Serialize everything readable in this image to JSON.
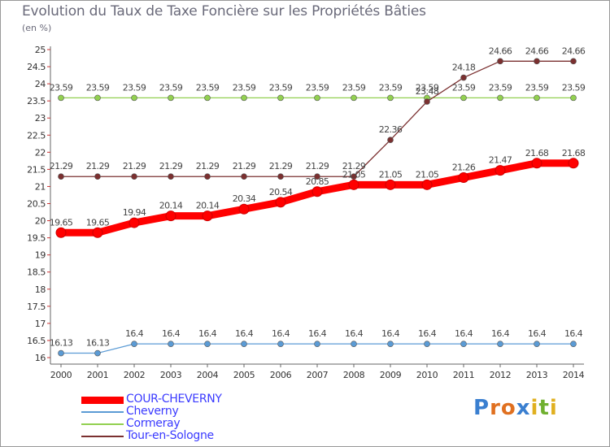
{
  "chart_data": {
    "type": "line",
    "title": "Evolution du Taux de Taxe Foncière sur les Propriétés Bâties",
    "ylabel": "(en %)",
    "categories": [
      "2000",
      "2001",
      "2002",
      "2003",
      "2004",
      "2005",
      "2006",
      "2007",
      "2008",
      "2009",
      "2010",
      "2011",
      "2012",
      "2013",
      "2014"
    ],
    "ylim": [
      16,
      25
    ],
    "yticks": [
      "16",
      "16.5",
      "17",
      "17.5",
      "18",
      "18.5",
      "19",
      "19.5",
      "20",
      "20.5",
      "21",
      "21.5",
      "22",
      "22.5",
      "23",
      "23.5",
      "24",
      "24.5",
      "25"
    ],
    "series": [
      {
        "name": "COUR-CHEVERNY",
        "color": "#ff0000",
        "values": [
          19.65,
          19.65,
          19.94,
          20.14,
          20.14,
          20.34,
          20.54,
          20.85,
          21.05,
          21.05,
          21.05,
          21.26,
          21.47,
          21.68,
          21.68
        ],
        "labels": [
          "19.65",
          "19.65",
          "19.94",
          "20.14",
          "20.14",
          "20.34",
          "20.54",
          "20.85",
          "21.05",
          "21.05",
          "21.05",
          "21.26",
          "21.47",
          "21.68",
          "21.68"
        ]
      },
      {
        "name": "Cheverny",
        "color": "#5b9bd5",
        "values": [
          16.13,
          16.13,
          16.4,
          16.4,
          16.4,
          16.4,
          16.4,
          16.4,
          16.4,
          16.4,
          16.4,
          16.4,
          16.4,
          16.4,
          16.4
        ],
        "labels": [
          "16.13",
          "16.13",
          "16.4",
          "16.4",
          "16.4",
          "16.4",
          "16.4",
          "16.4",
          "16.4",
          "16.4",
          "16.4",
          "16.4",
          "16.4",
          "16.4",
          "16.4"
        ]
      },
      {
        "name": "Cormeray",
        "color": "#92d050",
        "values": [
          23.59,
          23.59,
          23.59,
          23.59,
          23.59,
          23.59,
          23.59,
          23.59,
          23.59,
          23.59,
          23.59,
          23.59,
          23.59,
          23.59,
          23.59
        ],
        "labels": [
          "23.59",
          "23.59",
          "23.59",
          "23.59",
          "23.59",
          "23.59",
          "23.59",
          "23.59",
          "23.59",
          "23.59",
          "23.59",
          "23.59",
          "23.59",
          "23.59",
          "23.59"
        ]
      },
      {
        "name": "Tour-en-Sologne",
        "color": "#7b3030",
        "values": [
          21.29,
          21.29,
          21.29,
          21.29,
          21.29,
          21.29,
          21.29,
          21.29,
          21.29,
          22.36,
          23.48,
          24.18,
          24.66,
          24.66,
          24.66
        ],
        "labels": [
          "21.29",
          "21.29",
          "21.29",
          "21.29",
          "21.29",
          "21.29",
          "21.29",
          "21.29",
          "21.29",
          "22.36",
          "23.48",
          "24.18",
          "24.66",
          "24.66",
          "24.66"
        ]
      }
    ]
  },
  "legend": {
    "items": [
      {
        "label": "COUR-CHEVERNY",
        "color": "#ff0000"
      },
      {
        "label": "Cheverny",
        "color": "#5b9bd5"
      },
      {
        "label": "Cormeray",
        "color": "#92d050"
      },
      {
        "label": "Tour-en-Sologne",
        "color": "#7b3030"
      }
    ]
  },
  "brand": {
    "letters": [
      "P",
      "r",
      "o",
      "x",
      "i",
      "t",
      "i"
    ],
    "colors": [
      "#3a7fd0",
      "#e07020",
      "#e07020",
      "#3a7fd0",
      "#e0b020",
      "#70b030",
      "#e0b020"
    ]
  }
}
